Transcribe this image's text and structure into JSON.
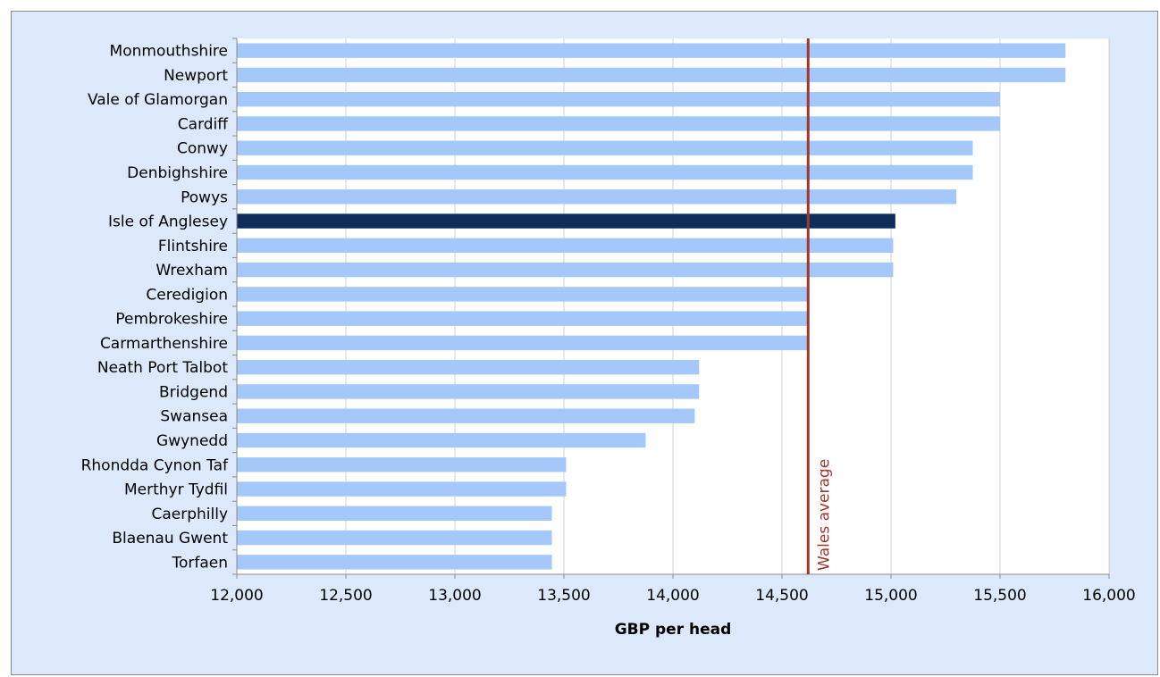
{
  "chart_data": {
    "type": "bar",
    "orientation": "horizontal",
    "categories": [
      "Monmouthshire",
      "Newport",
      "Vale of Glamorgan",
      "Cardiff",
      "Conwy",
      "Denbighshire",
      "Powys",
      "Isle of Anglesey",
      "Flintshire",
      "Wrexham",
      "Ceredigion",
      "Pembrokeshire",
      "Carmarthenshire",
      "Neath Port Talbot",
      "Bridgend",
      "Swansea",
      "Gwynedd",
      "Rhondda Cynon Taf",
      "Merthyr Tydfil",
      "Caerphilly",
      "Blaenau Gwent",
      "Torfaen"
    ],
    "values": [
      15800,
      15800,
      15500,
      15500,
      15375,
      15375,
      15300,
      15020,
      15010,
      15010,
      14620,
      14620,
      14620,
      14120,
      14120,
      14100,
      13875,
      13510,
      13510,
      13445,
      13445,
      13445
    ],
    "highlight_category": "Isle of Anglesey",
    "xlabel": "GBP per head",
    "xlim": [
      12000,
      16000
    ],
    "xticks": [
      12000,
      12500,
      13000,
      13500,
      14000,
      14500,
      15000,
      15500,
      16000
    ],
    "xtick_labels": [
      "12,000",
      "12,500",
      "13,000",
      "13,500",
      "14,000",
      "14,500",
      "15,000",
      "15,500",
      "16,000"
    ],
    "reference_line": {
      "label": "Wales average",
      "value": 14620
    },
    "grid": "vertical",
    "colors": {
      "bar": "#a4c8fa",
      "highlight": "#0f2d5c",
      "reference_line": "#a0372d",
      "gridline": "#d0d0d0",
      "plot_background": "#ffffff",
      "chart_background": "#dbe9fa"
    }
  }
}
